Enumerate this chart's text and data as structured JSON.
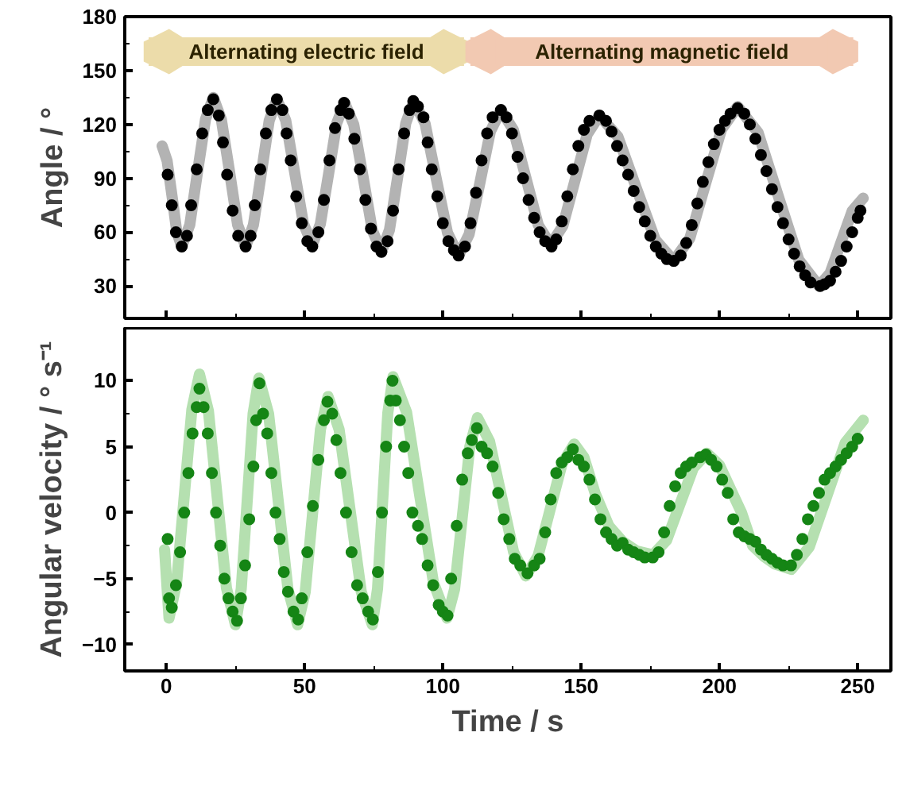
{
  "chart_data": [
    {
      "type": "scatter",
      "ylabel": "Angle / °",
      "xlim": [
        -15,
        262
      ],
      "xticks": [
        0,
        50,
        100,
        150,
        200,
        250
      ],
      "ylim": [
        12,
        180
      ],
      "yticks": [
        30,
        60,
        90,
        120,
        150,
        180
      ],
      "tick_labels": "y",
      "annotations": [
        "Alternating electric field",
        "Alternating magnetic field"
      ],
      "series": [
        {
          "type": "line",
          "color": "#b3b3b3",
          "x": [
            -1.5,
            0.3,
            2.1,
            3.8,
            5.6,
            8.5,
            11.3,
            14.2,
            17,
            19.9,
            22.9,
            25.8,
            28.7,
            31.5,
            34.4,
            37.2,
            40,
            43.2,
            46.4,
            49.6,
            52.8,
            55.7,
            58.7,
            61.6,
            64.5,
            67.8,
            71.2,
            74.5,
            77.8,
            80.7,
            83.7,
            86.6,
            89.5,
            93.6,
            97.6,
            101.7,
            105.7,
            109.5,
            113.4,
            117.2,
            121,
            125.5,
            130,
            134.5,
            139,
            143.4,
            147.8,
            152.2,
            156.6,
            163.3,
            170,
            176.8,
            183.5,
            189.3,
            195,
            200.8,
            206.6,
            214,
            221.3,
            228.7,
            236,
            240,
            244,
            248,
            252
          ],
          "values": [
            108,
            99.8,
            80,
            60.2,
            52,
            64.1,
            93.5,
            122.9,
            135,
            122.9,
            93.5,
            64.1,
            52,
            64,
            93,
            122,
            134,
            122.2,
            93.5,
            64.8,
            53,
            64.5,
            92.5,
            120.5,
            132,
            119.9,
            90.5,
            61.1,
            49,
            61.3,
            91,
            120.7,
            133,
            120.4,
            90,
            59.6,
            47,
            58.8,
            87.5,
            116.2,
            128,
            117,
            90.5,
            64,
            53,
            63.5,
            89,
            114.5,
            125,
            113.2,
            84.5,
            55.8,
            44,
            56.6,
            87,
            117.4,
            130,
            115.4,
            80,
            44.6,
            30,
            37.2,
            54.5,
            71.8,
            79
          ]
        },
        {
          "color": "#000000",
          "marker": "circle",
          "x": [
            0.5,
            2,
            3.5,
            5.6,
            7.5,
            9,
            11,
            13,
            15,
            17,
            19,
            20.5,
            22,
            24,
            26,
            28.7,
            30.5,
            32,
            34,
            36,
            38,
            40,
            42,
            43.5,
            45,
            47,
            49,
            51,
            52.8,
            55,
            57,
            59,
            61,
            63,
            64.3,
            66,
            68,
            70,
            72,
            74,
            76,
            77.8,
            80,
            82,
            84,
            86,
            88,
            89.3,
            91,
            93,
            94.5,
            96,
            98,
            100,
            102,
            104,
            105.7,
            108,
            110,
            112,
            114,
            116,
            118,
            121,
            123,
            125,
            127,
            129,
            131,
            133,
            135,
            137,
            139.3,
            141,
            143,
            145,
            147,
            149,
            151,
            153,
            156.6,
            159,
            161,
            163,
            165,
            167,
            169,
            171,
            173,
            175,
            177,
            179,
            181,
            183.5,
            186,
            188,
            190,
            192,
            194,
            196,
            198,
            200,
            202,
            204,
            206.6,
            209,
            211,
            213,
            215,
            217,
            219,
            221,
            223,
            225,
            227,
            229,
            231,
            233,
            236.4,
            238,
            240,
            242,
            244,
            246,
            248,
            250,
            251
          ],
          "values": [
            92,
            75,
            60,
            52,
            58,
            75,
            95,
            115,
            128,
            134,
            125,
            110,
            92,
            72,
            58,
            52,
            58,
            75,
            95,
            115,
            128,
            134,
            128,
            115,
            100,
            80,
            65,
            55,
            52,
            60,
            78,
            100,
            118,
            128,
            132,
            126,
            112,
            95,
            78,
            62,
            52,
            49,
            55,
            72,
            95,
            115,
            128,
            133,
            130,
            124,
            110,
            95,
            80,
            65,
            55,
            50,
            47,
            52,
            65,
            82,
            100,
            115,
            124,
            128,
            124,
            115,
            102,
            90,
            78,
            68,
            60,
            55,
            52,
            56,
            66,
            80,
            95,
            108,
            117,
            122,
            125,
            122,
            116,
            108,
            100,
            92,
            83,
            74,
            66,
            58,
            52,
            48,
            45,
            44,
            47,
            54,
            64,
            76,
            88,
            99,
            109,
            117,
            122,
            126,
            129,
            126,
            120,
            112,
            103,
            94,
            84,
            74,
            65,
            56,
            48,
            41,
            36,
            32,
            30,
            31,
            33,
            38,
            44,
            52,
            60,
            68,
            72
          ]
        }
      ]
    },
    {
      "type": "scatter",
      "xlabel": "Time / s",
      "ylabel": "Angular velocity / ° s⁻¹",
      "xlim": [
        -15,
        262
      ],
      "xticks": [
        0,
        50,
        100,
        150,
        200,
        250
      ],
      "ylim": [
        -12,
        14
      ],
      "yticks": [
        -10,
        -5,
        0,
        5,
        10
      ],
      "series": [
        {
          "type": "line",
          "color": "#b5e0b0",
          "x": [
            -0.6,
            1,
            3.75,
            6.5,
            9.25,
            12,
            15.25,
            18.5,
            21.75,
            25,
            27.1,
            29.25,
            31.4,
            33.5,
            37,
            40.5,
            44,
            47.5,
            50.25,
            53,
            55.75,
            58.5,
            62.5,
            66.5,
            70.5,
            74.5,
            76.4,
            78.25,
            80.1,
            82,
            86.9,
            91.75,
            96.6,
            101.5,
            104.25,
            107,
            109.75,
            112.5,
            116.9,
            121.25,
            125.6,
            130,
            134.4,
            138.75,
            143.1,
            147.5,
            151,
            155,
            160,
            165,
            170,
            176,
            180.9,
            185.75,
            190.6,
            195.5,
            200,
            204,
            208,
            212,
            216,
            220,
            226,
            232.5,
            239,
            245.5,
            252
          ],
          "values": [
            -2.8,
            -8,
            -5.3,
            1.25,
            7.8,
            10.5,
            7.7,
            1,
            -5.7,
            -8.5,
            -5.8,
            0.85,
            7.5,
            10.2,
            7.5,
            0.85,
            -5.8,
            -8.5,
            -6,
            0.15,
            6.3,
            8.8,
            6.3,
            0.15,
            -6,
            -8.5,
            -5.75,
            0.9,
            7.55,
            10.3,
            7.6,
            1.15,
            -5.3,
            -8,
            -5.8,
            -0.4,
            5,
            7.2,
            5.4,
            1.2,
            -3,
            -4.8,
            -3.3,
            0.2,
            3.7,
            5.2,
            4.2,
            1.5,
            -1,
            -2.2,
            -2.9,
            -3.2,
            -2.1,
            0.65,
            3.4,
            4.5,
            3.6,
            1.8,
            0,
            -2.5,
            -3.3,
            -3.9,
            -4.3,
            -2.6,
            1.35,
            5.3,
            7
          ]
        },
        {
          "color": "#158515",
          "marker": "circle",
          "x": [
            0.5,
            1,
            2,
            3.5,
            5,
            6.5,
            8,
            9.5,
            11,
            12,
            13.5,
            15,
            16.5,
            18,
            19.5,
            21,
            22.5,
            24,
            25.6,
            27,
            28.5,
            30,
            31.5,
            32.5,
            33.7,
            35,
            36.5,
            38,
            39.5,
            41,
            42.5,
            44,
            46,
            47.7,
            49,
            51,
            53,
            55,
            57,
            58.3,
            60,
            61.5,
            63,
            65,
            67,
            69,
            71,
            73,
            74.7,
            76.5,
            78,
            79.5,
            81,
            81.8,
            83,
            84.5,
            86,
            87.5,
            89,
            91,
            92.5,
            94.5,
            96.5,
            98.5,
            100,
            101.7,
            103,
            105,
            107,
            109,
            110.5,
            112.3,
            114,
            116,
            118,
            120,
            122,
            124,
            126,
            128,
            130.6,
            133,
            135,
            137,
            139,
            141,
            143,
            145,
            147,
            149,
            151,
            153,
            155,
            157,
            159,
            161,
            163,
            165,
            167,
            169,
            171,
            173,
            175.9,
            178,
            180,
            182,
            184,
            186,
            188,
            190,
            193,
            195.1,
            197,
            199,
            201,
            203,
            205,
            207,
            209,
            211,
            213,
            215,
            217,
            219,
            221,
            223,
            225.9,
            228,
            230,
            232,
            234,
            236,
            238,
            240,
            242,
            244,
            246,
            248,
            250
          ],
          "values": [
            -2,
            -6.5,
            -7.2,
            -5.5,
            -3,
            0,
            3,
            6,
            8,
            9.4,
            8,
            6,
            3,
            0,
            -2.5,
            -5,
            -6.5,
            -7.5,
            -8.2,
            -6.5,
            -4,
            -0.5,
            3.5,
            7,
            9.8,
            7.5,
            6,
            3,
            0,
            -2,
            -4.5,
            -6,
            -7.5,
            -8.1,
            -6.5,
            -3,
            0.5,
            4,
            7,
            8.4,
            7.5,
            5.5,
            3,
            0,
            -3,
            -5.5,
            -6.5,
            -7.5,
            -8.1,
            -4.5,
            0,
            5,
            8.5,
            10,
            8.5,
            7,
            5,
            3,
            0,
            -1,
            -2,
            -4,
            -5.5,
            -7,
            -7.5,
            -7.8,
            -5,
            -1,
            2.5,
            4.5,
            5.5,
            6.4,
            5,
            4.5,
            3.5,
            1.5,
            -0.5,
            -2,
            -3.5,
            -4,
            -4.6,
            -4,
            -3.5,
            -1.5,
            1,
            3,
            3.8,
            4.2,
            4.8,
            4,
            3.5,
            2.5,
            1,
            -0.5,
            -1.5,
            -2,
            -2.5,
            -2.3,
            -2.8,
            -3,
            -3.2,
            -3.4,
            -3.4,
            -3,
            -1.5,
            0.5,
            2,
            3,
            3.5,
            3.8,
            4.2,
            4.4,
            4,
            3.5,
            2.5,
            1.5,
            -0.5,
            -1.5,
            -1.8,
            -2,
            -2.2,
            -2.8,
            -3.2,
            -3.5,
            -3.8,
            -4,
            -4,
            -3.2,
            -2,
            -0.5,
            0.5,
            1.5,
            2.5,
            3,
            3.5,
            4,
            4.5,
            5,
            5.6
          ]
        }
      ]
    }
  ]
}
